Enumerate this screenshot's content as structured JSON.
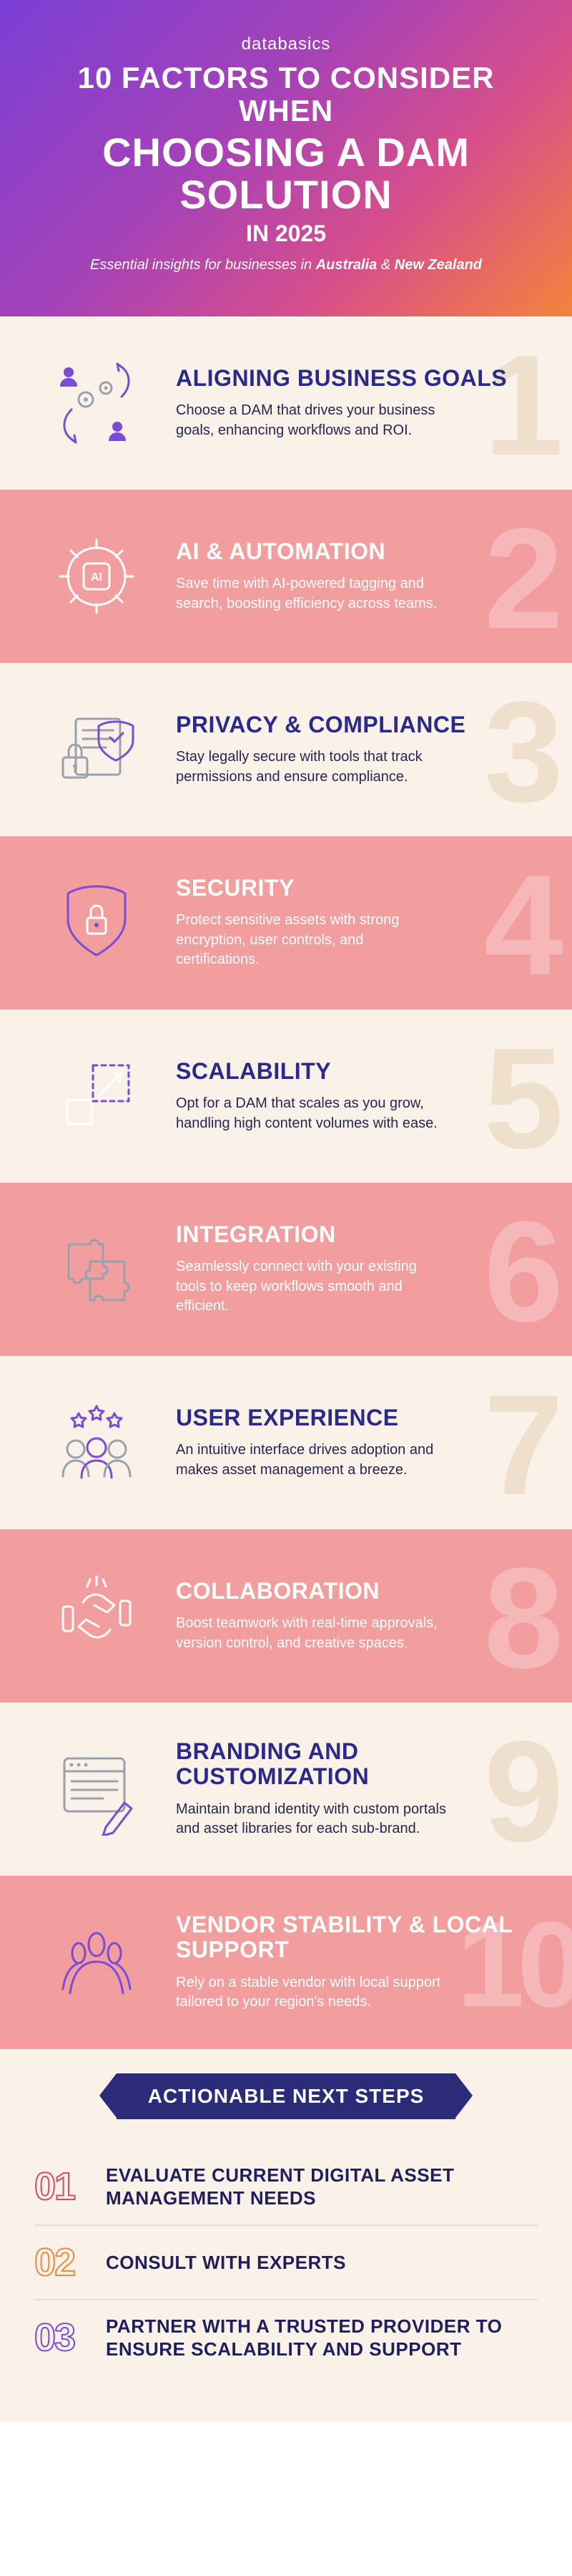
{
  "colors": {
    "hero_gradient": [
      "#7b3fd6",
      "#a442b8",
      "#d94f8a",
      "#f5833a"
    ],
    "light_bg": "#faf2e8",
    "pink_bg": "#f29e9e",
    "title_light": "#2a2a8a",
    "text_light": "#262650",
    "num_light": "#eee0cc",
    "num_pink": "#f5b7b7",
    "ribbon_bg": "#2b2b7a",
    "icon_purple": "#7a4bd8",
    "icon_gray": "#9aa0ad",
    "icon_white": "#ffffff",
    "step_border": "#e8dcc8",
    "step1_color": "#d94a6a",
    "step2_color": "#f08a3a",
    "step3_color": "#7a4bd8"
  },
  "hero": {
    "brand": "databasics",
    "line1": "10 FACTORS TO CONSIDER",
    "line2": "WHEN",
    "line3": "CHOOSING A DAM",
    "line4": "SOLUTION",
    "line5_prefix": "IN ",
    "line5_year": "2025",
    "sub_prefix": "Essential insights for businesses in ",
    "sub_bold": "Australia",
    "sub_mid": " & ",
    "sub_bold2": "New Zealand"
  },
  "factors": [
    {
      "n": "1",
      "variant": "light",
      "icon": "align-goals",
      "title": "ALIGNING BUSINESS GOALS",
      "desc": "Choose a DAM that drives your business goals, enhancing workflows and ROI."
    },
    {
      "n": "2",
      "variant": "pink",
      "icon": "ai-gear",
      "title": "AI & AUTOMATION",
      "desc": "Save time with AI-powered tagging and search, boosting efficiency across teams."
    },
    {
      "n": "3",
      "variant": "light",
      "icon": "privacy-doc",
      "title": "PRIVACY & COMPLIANCE",
      "desc": "Stay legally secure with tools that track permissions and ensure compliance."
    },
    {
      "n": "4",
      "variant": "pink",
      "icon": "shield-lock",
      "title": "SECURITY",
      "desc": "Protect sensitive assets with strong encryption, user controls, and certifications."
    },
    {
      "n": "5",
      "variant": "light",
      "icon": "scale-arrow",
      "title": "SCALABILITY",
      "desc": "Opt for a DAM that scales as you grow, handling high content volumes with ease."
    },
    {
      "n": "6",
      "variant": "pink",
      "icon": "puzzle",
      "title": "INTEGRATION",
      "desc": "Seamlessly connect with your existing tools to keep workflows smooth and efficient."
    },
    {
      "n": "7",
      "variant": "light",
      "icon": "ux-people",
      "title": "USER EXPERIENCE",
      "desc": "An intuitive interface drives adoption and makes asset management a breeze."
    },
    {
      "n": "8",
      "variant": "pink",
      "icon": "collab-hands",
      "title": "COLLABORATION",
      "desc": "Boost teamwork with real-time approvals, version control, and creative spaces."
    },
    {
      "n": "9",
      "variant": "light",
      "icon": "branding-window",
      "title": "BRANDING AND CUSTOMIZATION",
      "desc": "Maintain brand identity with custom portals and asset libraries for each sub-brand."
    },
    {
      "n": "10",
      "variant": "pink",
      "icon": "vendor-people",
      "title": "VENDOR STABILITY & LOCAL SUPPORT",
      "desc": "Rely on a stable vendor with local support tailored to your region's needs."
    }
  ],
  "ribbon": "ACTIONABLE NEXT STEPS",
  "steps": [
    {
      "num": "01",
      "class": "sn1",
      "label": "EVALUATE CURRENT DIGITAL ASSET MANAGEMENT NEEDS"
    },
    {
      "num": "02",
      "class": "sn2",
      "label": "CONSULT WITH EXPERTS"
    },
    {
      "num": "03",
      "class": "sn3",
      "label": "PARTNER WITH A TRUSTED PROVIDER TO ENSURE SCALABILITY AND SUPPORT"
    }
  ]
}
